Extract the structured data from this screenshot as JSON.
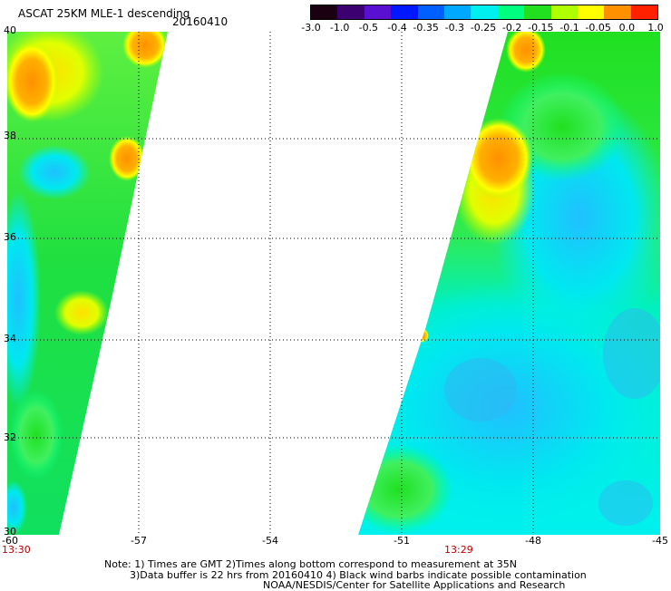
{
  "header": {
    "title": "ASCAT 25KM MLE-1 descending",
    "date": "20160410"
  },
  "colorbar": {
    "labels": [
      "-3.0",
      "-1.0",
      "-0.5",
      "-0.4",
      "-0.35",
      "-0.3",
      "-0.25",
      "-0.2",
      "-0.15",
      "-0.1",
      "-0.05",
      "0.0",
      "1.0"
    ],
    "colors": [
      "#1a0010",
      "#3c0070",
      "#5a10d0",
      "#0018ff",
      "#0060ff",
      "#00a8ff",
      "#00f0f0",
      "#00ff80",
      "#20e020",
      "#b0ff00",
      "#ffff00",
      "#ff9000",
      "#ff2000"
    ]
  },
  "map": {
    "lat_labels": [
      "40",
      "38",
      "36",
      "34",
      "32",
      "30"
    ],
    "lon_labels": [
      "-60",
      "-57",
      "-54",
      "-51",
      "-48",
      "-45"
    ],
    "pass_times": [
      "13:30",
      "13:29"
    ],
    "lat_range": [
      30,
      40
    ],
    "lon_range": [
      -60,
      -45
    ]
  },
  "notes": {
    "line1": "Note: 1) Times are GMT 2)Times along bottom correspond to measurement at 35N",
    "line2": "3)Data buffer is 22 hrs from 20160410 4) Black wind barbs indicate possible contamination",
    "line3": "NOAA/NESDIS/Center for Satellite Applications and Research"
  }
}
